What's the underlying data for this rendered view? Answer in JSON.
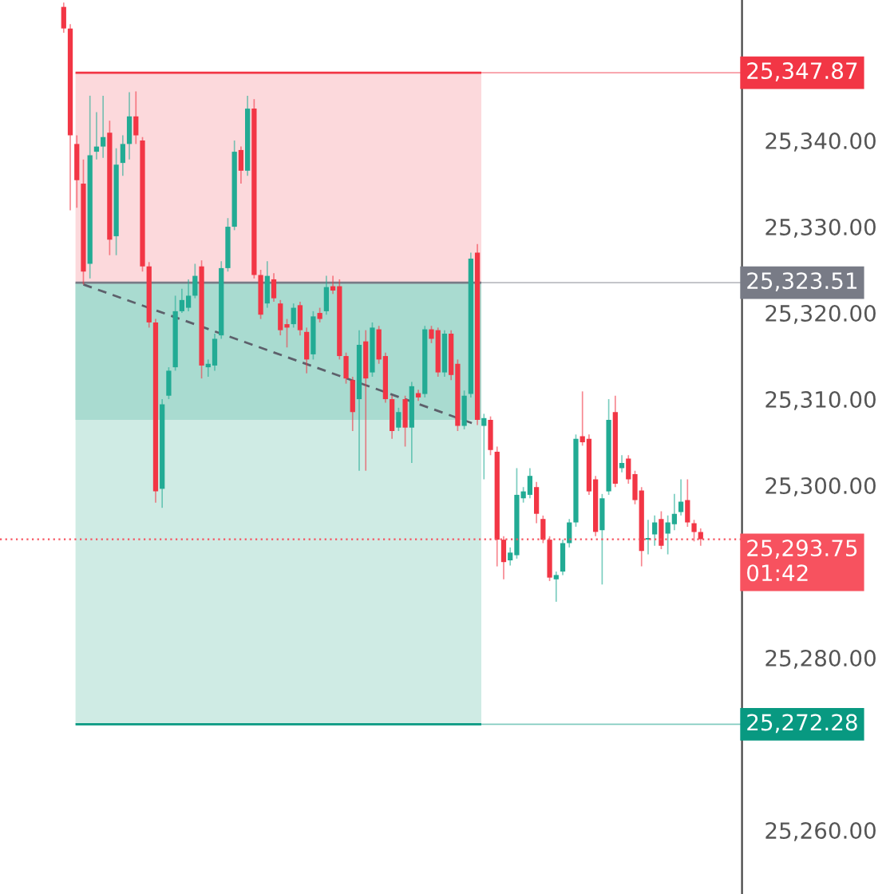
{
  "chart_data": {
    "type": "candlestick",
    "categories": [
      null,
      null,
      null,
      null,
      null,
      null,
      null,
      null,
      null,
      null,
      null,
      null,
      null,
      null,
      null,
      null,
      null,
      null,
      null,
      null,
      null,
      null,
      null,
      null,
      null,
      null,
      null,
      null,
      null,
      null,
      null,
      null,
      null,
      null,
      null,
      null,
      null,
      null,
      null,
      null,
      null,
      null,
      null,
      null,
      null,
      null,
      null,
      null,
      null,
      null,
      null,
      null,
      null,
      null,
      null,
      null,
      null,
      null,
      null,
      null,
      null,
      null,
      null,
      null,
      null,
      null,
      null,
      null,
      null,
      null,
      null,
      null,
      null,
      null,
      null,
      null,
      null,
      null,
      null,
      null,
      null,
      null,
      null,
      null,
      null,
      null,
      null,
      null,
      null,
      null,
      null,
      null,
      null,
      null,
      null,
      null,
      null,
      null
    ],
    "ohlc": [
      [
        25355.5,
        25356,
        25352.5,
        25353.0
      ],
      [
        25353.0,
        25353.5,
        25331.9,
        25340.6
      ],
      [
        25339.6,
        25340.6,
        25332.2,
        25335.4
      ],
      [
        25335.0,
        25337.8,
        25323.3,
        25324.8
      ],
      [
        25325.7,
        25345.2,
        25324.0,
        25338.3
      ],
      [
        25338.7,
        25343.3,
        25337.8,
        25339.3
      ],
      [
        25339.3,
        25345.2,
        25338.0,
        25340.4
      ],
      [
        25340.9,
        25342.3,
        25326.7,
        25328.5
      ],
      [
        25328.9,
        25339.1,
        25326.7,
        25337.2
      ],
      [
        25337.4,
        25340.6,
        25335.9,
        25339.6
      ],
      [
        25339.6,
        25345.6,
        25337.8,
        25342.8
      ],
      [
        25342.8,
        25345.7,
        25339.6,
        25340.6
      ],
      [
        25340.0,
        25340.4,
        25324.8,
        25325.4
      ],
      [
        25325.4,
        25325.9,
        25318.3,
        25318.9
      ],
      [
        25318.9,
        25319.3,
        25298.0,
        25299.3
      ],
      [
        25299.6,
        25310.0,
        25297.4,
        25309.4
      ],
      [
        25310.4,
        25313.7,
        25310.0,
        25313.3
      ],
      [
        25313.7,
        25322.0,
        25313.3,
        25320.2
      ],
      [
        25320.2,
        25322.8,
        25320.0,
        25321.5
      ],
      [
        25320.6,
        25323.9,
        25320.2,
        25322.0
      ],
      [
        25322.0,
        25325.7,
        25321.7,
        25324.3
      ],
      [
        25325.4,
        25326.1,
        25312.4,
        25313.9
      ],
      [
        25313.7,
        25314.6,
        25312.6,
        25314.1
      ],
      [
        25313.9,
        25317.6,
        25313.3,
        25317.0
      ],
      [
        25317.4,
        25326.0,
        25317.0,
        25325.2
      ],
      [
        25325.2,
        25331.0,
        25324.8,
        25330.0
      ],
      [
        25330.0,
        25340.0,
        25329.6,
        25338.7
      ],
      [
        25338.9,
        25339.3,
        25335.0,
        25336.5
      ],
      [
        25336.5,
        25345.2,
        25335.9,
        25343.7
      ],
      [
        25343.7,
        25344.8,
        25324.0,
        25324.4
      ],
      [
        25324.4,
        25325.0,
        25319.3,
        25319.8
      ],
      [
        25321.1,
        25326.0,
        25320.6,
        25324.3
      ],
      [
        25323.9,
        25324.6,
        25321.3,
        25321.7
      ],
      [
        25321.1,
        25321.5,
        25317.4,
        25318.0
      ],
      [
        25318.7,
        25319.3,
        25316.0,
        25318.3
      ],
      [
        25318.7,
        25321.1,
        25318.3,
        25320.6
      ],
      [
        25320.9,
        25321.3,
        25317.4,
        25318.0
      ],
      [
        25317.8,
        25318.3,
        25313.0,
        25314.6
      ],
      [
        25315.2,
        25320.2,
        25314.6,
        25319.6
      ],
      [
        25320.0,
        25320.6,
        25318.9,
        25319.3
      ],
      [
        25320.2,
        25324.3,
        25319.8,
        25323.0
      ],
      [
        25323.1,
        25324.3,
        25322.2,
        25322.6
      ],
      [
        25323.1,
        25323.9,
        25314.6,
        25315.0
      ],
      [
        25315.0,
        25315.4,
        25311.8,
        25312.4
      ],
      [
        25312.2,
        25312.6,
        25306.3,
        25308.5
      ],
      [
        25310.0,
        25318.0,
        25301.7,
        25316.3
      ],
      [
        25316.7,
        25318.0,
        25301.7,
        25312.4
      ],
      [
        25313.1,
        25318.9,
        25312.6,
        25318.3
      ],
      [
        25318.1,
        25318.5,
        25314.1,
        25314.6
      ],
      [
        25315.0,
        25315.4,
        25309.6,
        25310.0
      ],
      [
        25310.0,
        25310.4,
        25305.4,
        25306.3
      ],
      [
        25306.7,
        25309.0,
        25306.3,
        25308.5
      ],
      [
        25310.0,
        25310.4,
        25304.5,
        25306.7
      ],
      [
        25306.7,
        25312.0,
        25302.6,
        25311.5
      ],
      [
        25310.7,
        25311.1,
        25309.8,
        25310.2
      ],
      [
        25310.6,
        25318.5,
        25310.2,
        25318.1
      ],
      [
        25318.1,
        25318.5,
        25316.5,
        25317.0
      ],
      [
        25318.0,
        25318.3,
        25312.6,
        25313.1
      ],
      [
        25313.1,
        25318.0,
        25312.6,
        25317.6
      ],
      [
        25317.6,
        25318.0,
        25312.2,
        25312.8
      ],
      [
        25314.1,
        25314.6,
        25306.3,
        25306.9
      ],
      [
        25306.9,
        25311.0,
        25306.5,
        25310.4
      ],
      [
        25310.6,
        25327.0,
        25310.2,
        25326.3
      ],
      [
        25327.0,
        25328.0,
        25307.0,
        25307.6
      ],
      [
        25306.9,
        25308.3,
        25300.7,
        25307.8
      ],
      [
        25307.6,
        25308.0,
        25303.5,
        25304.1
      ],
      [
        25303.9,
        25304.5,
        25290.6,
        25293.7
      ],
      [
        25293.7,
        25294.1,
        25289.1,
        25291.1
      ],
      [
        25291.3,
        25292.8,
        25290.7,
        25292.2
      ],
      [
        25291.9,
        25302.0,
        25291.5,
        25298.9
      ],
      [
        25298.5,
        25299.8,
        25298.0,
        25299.3
      ],
      [
        25298.9,
        25302.0,
        25298.5,
        25301.1
      ],
      [
        25299.8,
        25300.4,
        25295.6,
        25296.7
      ],
      [
        25296.1,
        25296.5,
        25293.3,
        25293.7
      ],
      [
        25293.7,
        25294.1,
        25288.9,
        25289.3
      ],
      [
        25289.1,
        25290.0,
        25286.5,
        25289.6
      ],
      [
        25290.0,
        25293.7,
        25289.6,
        25293.3
      ],
      [
        25293.3,
        25296.1,
        25292.8,
        25295.7
      ],
      [
        25295.7,
        25305.9,
        25295.2,
        25305.4
      ],
      [
        25305.7,
        25310.9,
        25304.6,
        25305.0
      ],
      [
        25305.4,
        25305.9,
        25298.9,
        25299.3
      ],
      [
        25300.7,
        25301.1,
        25294.1,
        25294.6
      ],
      [
        25294.8,
        25299.0,
        25288.5,
        25298.5
      ],
      [
        25299.3,
        25310.0,
        25298.9,
        25307.6
      ],
      [
        25308.5,
        25310.4,
        25299.8,
        25300.2
      ],
      [
        25302.0,
        25303.5,
        25301.5,
        25302.6
      ],
      [
        25303.1,
        25303.5,
        25300.2,
        25300.7
      ],
      [
        25301.3,
        25301.7,
        25297.8,
        25298.3
      ],
      [
        25299.4,
        25299.8,
        25290.6,
        25292.4
      ],
      [
        25293.7,
        25296.0,
        25292.0,
        25293.9
      ],
      [
        25294.3,
        25296.5,
        25293.0,
        25295.7
      ],
      [
        25296.1,
        25297.0,
        25292.6,
        25293.0
      ],
      [
        25294.4,
        25296.5,
        25292.0,
        25295.7
      ],
      [
        25295.5,
        25299.0,
        25294.8,
        25296.7
      ],
      [
        25296.9,
        25300.7,
        25296.5,
        25298.1
      ],
      [
        25298.3,
        25300.7,
        25295.2,
        25295.7
      ],
      [
        25295.6,
        25296.0,
        25293.5,
        25294.6
      ],
      [
        25294.6,
        25295.0,
        25293.0,
        25293.75
      ]
    ],
    "series": [
      {
        "type": "line",
        "color": "#5d606b",
        "line_style": "dashed",
        "values": [
          null,
          null,
          null,
          25323.3,
          null,
          null,
          null,
          null,
          null,
          null,
          null,
          null,
          null,
          null,
          null,
          null,
          null,
          null,
          null,
          null,
          null,
          null,
          null,
          null,
          null,
          null,
          null,
          null,
          null,
          null,
          null,
          null,
          null,
          null,
          null,
          null,
          null,
          null,
          null,
          null,
          null,
          null,
          null,
          null,
          null,
          null,
          null,
          null,
          null,
          null,
          null,
          null,
          null,
          null,
          null,
          null,
          null,
          null,
          null,
          null,
          null,
          null,
          null,
          25307.0,
          null,
          null,
          null,
          null,
          null,
          null,
          null,
          null,
          null,
          null,
          null,
          null,
          null,
          null,
          null,
          null,
          null,
          null,
          null,
          null,
          null,
          null,
          null,
          null,
          null,
          null,
          null,
          null,
          null,
          null,
          null,
          null,
          null,
          null
        ]
      }
    ],
    "ylim": [
      25252.6,
      25356.3
    ],
    "yticks": [
      {
        "value": 25260,
        "label": "25,260.00"
      },
      {
        "value": 25280,
        "label": "25,280.00"
      },
      {
        "value": 25300,
        "label": "25,300.00"
      },
      {
        "value": 25310,
        "label": "25,310.00"
      },
      {
        "value": 25320,
        "label": "25,320.00"
      },
      {
        "value": 25330,
        "label": "25,330.00"
      },
      {
        "value": 25340,
        "label": "25,340.00"
      }
    ],
    "tick_labels": "y",
    "bands": [
      {
        "axis": "y",
        "from": 25323.51,
        "to": 25347.87,
        "color": "#fcd9dc"
      },
      {
        "axis": "y",
        "from": 25272.28,
        "to": 25323.51,
        "color": "#cfebe4"
      },
      {
        "axis": "y",
        "from": 25307.6,
        "to": 25323.51,
        "color": "#a9dbd0"
      }
    ],
    "ref_lines": [
      {
        "axis": "y",
        "value": 25347.87,
        "label": "25,347.87",
        "color": "#f23645",
        "line_style": "solid"
      },
      {
        "axis": "y",
        "value": 25323.51,
        "label": "25,323.51",
        "color": "#787b86",
        "line_style": "solid"
      },
      {
        "axis": "y",
        "value": 25293.75,
        "label": "25,293.75\n01:42",
        "color": "#f7525f",
        "line_style": "dotted"
      },
      {
        "axis": "y",
        "value": 25272.28,
        "label": "25,272.28",
        "color": "#089981",
        "line_style": "solid"
      }
    ],
    "grid": false
  }
}
